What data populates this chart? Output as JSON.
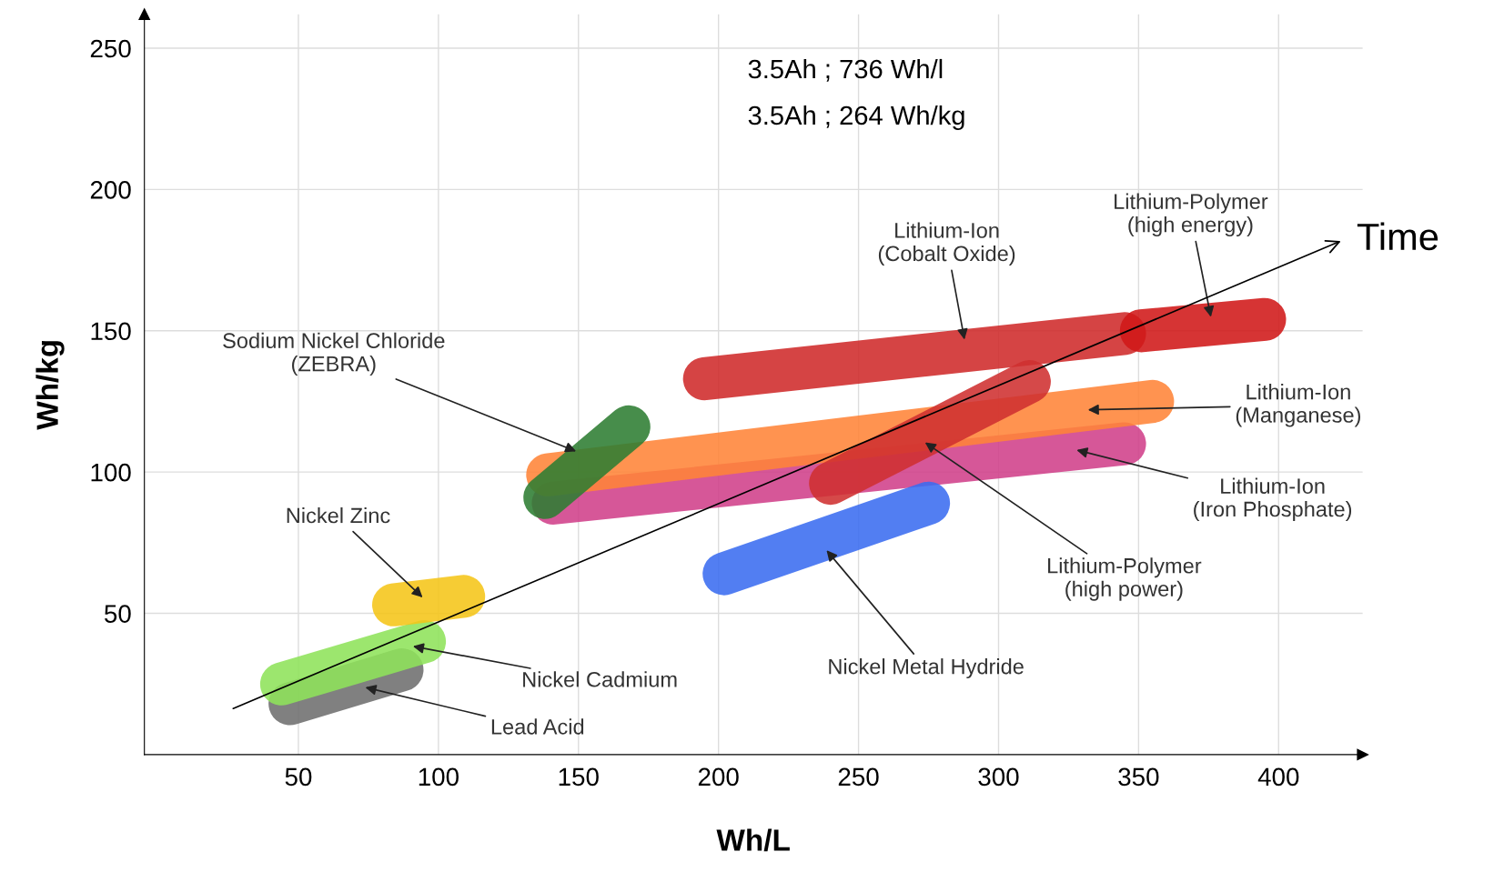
{
  "chart_data": {
    "type": "line",
    "xlabel": "Wh/L",
    "ylabel": "Wh/kg",
    "xlim": [
      -5,
      430
    ],
    "ylim": [
      0,
      262
    ],
    "xticks": [
      50,
      100,
      150,
      200,
      250,
      300,
      350,
      400
    ],
    "yticks": [
      50,
      100,
      150,
      200,
      250
    ],
    "grid": true,
    "series": [
      {
        "color": "#6e6e6e",
        "x": [
          47,
          87
        ],
        "values": [
          18,
          30
        ]
      },
      {
        "color": "#8ee35a",
        "x": [
          44,
          95
        ],
        "values": [
          25,
          40
        ]
      },
      {
        "color": "#f5c518",
        "x": [
          84,
          109
        ],
        "values": [
          53,
          56
        ]
      },
      {
        "color": "#d0408a",
        "x": [
          141,
          345
        ],
        "values": [
          89,
          110
        ]
      },
      {
        "color": "#ff8438",
        "x": [
          139,
          355
        ],
        "values": [
          99,
          125
        ]
      },
      {
        "color": "#2e7d32",
        "x": [
          138,
          168
        ],
        "values": [
          91,
          116
        ]
      },
      {
        "color": "#cf2a2a",
        "x": [
          195,
          345
        ],
        "values": [
          133,
          149
        ]
      },
      {
        "color": "#d01818",
        "x": [
          351,
          395
        ],
        "values": [
          150,
          154
        ]
      },
      {
        "color": "#cf3030",
        "x": [
          240,
          311
        ],
        "values": [
          96,
          132
        ]
      },
      {
        "color": "#3a6cf0",
        "x": [
          202,
          275
        ],
        "values": [
          64,
          89
        ]
      }
    ],
    "annotations": [
      {
        "text": "Lead Acid",
        "x": 73,
        "y": 24
      },
      {
        "text": "Nickel Cadmium",
        "x": 90,
        "y": 38.5
      },
      {
        "text": "Nickel Zinc",
        "x": 95,
        "y": 55
      },
      {
        "text": "Sodium Nickel Chloride\n(ZEBRA)",
        "x": 150,
        "y": 107
      },
      {
        "text": "Lithium-Ion\n(Cobalt Oxide)",
        "x": 288,
        "y": 146
      },
      {
        "text": "Lithium-Polymer\n(high energy)",
        "x": 376,
        "y": 154
      },
      {
        "text": "Lithium-Ion\n(Manganese)",
        "x": 331,
        "y": 122
      },
      {
        "text": "Lithium-Ion\n(Iron Phosphate)",
        "x": 327,
        "y": 108
      },
      {
        "text": "Lithium-Polymer\n(high power)",
        "x": 273,
        "y": 111
      },
      {
        "text": "Nickel Metal Hydride",
        "x": 238,
        "y": 73
      },
      "3.5Ah ; 736 Wh/l",
      "3.5Ah ; 264 Wh/kg",
      "Time"
    ]
  }
}
